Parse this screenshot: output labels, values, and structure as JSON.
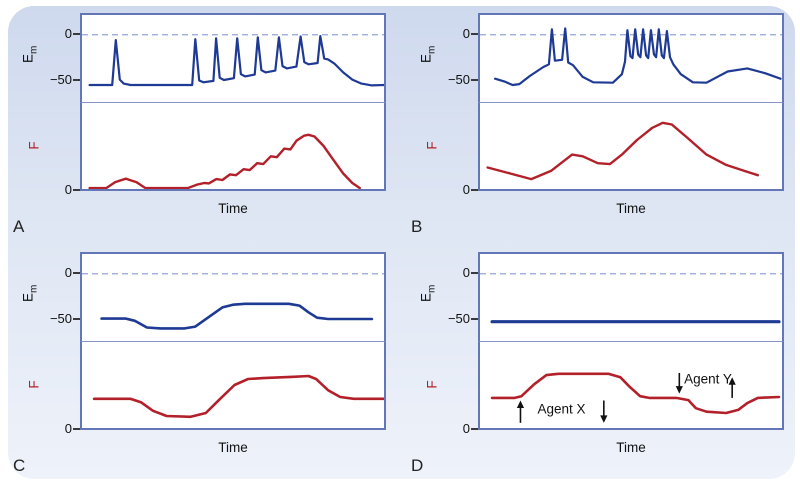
{
  "chart_data": {
    "type": "line",
    "description": "Four-panel physiology figure: membrane potential (Em, mV) and force (F) versus time",
    "colors": {
      "em_trace": "#1e3a94",
      "f_trace": "#b3202a",
      "zero_dashed": "#94a5d8",
      "plot_border": "#6377b8",
      "annotation": "#111111"
    },
    "panels": [
      {
        "label": "A",
        "xlabel": "Time",
        "xlim": [
          0,
          100
        ],
        "em": {
          "label_main": "E",
          "label_sub": "m",
          "ticks": [
            "0",
            "−50"
          ],
          "ylim": [
            -75,
            22
          ],
          "zero_dashed": true,
          "line_width": 2.2,
          "series": [
            [
              2.5,
              -56
            ],
            [
              10,
              -56
            ],
            [
              11.2,
              -6
            ],
            [
              12.5,
              -50
            ],
            [
              13.8,
              -54.5
            ],
            [
              16,
              -56
            ],
            [
              36.5,
              -56
            ],
            [
              37.5,
              -5
            ],
            [
              38.8,
              -51
            ],
            [
              40.2,
              -53
            ],
            [
              43.5,
              -51.5
            ],
            [
              44.4,
              -4
            ],
            [
              45.6,
              -48
            ],
            [
              47,
              -50.5
            ],
            [
              50.3,
              -48.5
            ],
            [
              51.4,
              -4
            ],
            [
              52.6,
              -44
            ],
            [
              54,
              -46.5
            ],
            [
              57.2,
              -44.5
            ],
            [
              58.2,
              -3
            ],
            [
              59.4,
              -39.5
            ],
            [
              60.8,
              -42
            ],
            [
              64,
              -40
            ],
            [
              65.2,
              -3
            ],
            [
              66.4,
              -35
            ],
            [
              67.8,
              -37.5
            ],
            [
              71,
              -35.5
            ],
            [
              72.4,
              -2
            ],
            [
              73.6,
              -30.5
            ],
            [
              75,
              -33
            ],
            [
              78,
              -31.5
            ],
            [
              78.9,
              -1.5
            ],
            [
              80.2,
              -26.5
            ],
            [
              81.5,
              -27.5
            ],
            [
              83.5,
              -32
            ],
            [
              86.5,
              -42
            ],
            [
              89.5,
              -50
            ],
            [
              92.5,
              -54.5
            ],
            [
              96,
              -56.5
            ],
            [
              100,
              -56
            ]
          ]
        },
        "f": {
          "label": "F",
          "tick": "0",
          "ylim": [
            0,
            100
          ],
          "line_width": 2.4,
          "series": [
            [
              2.5,
              1
            ],
            [
              8,
              1
            ],
            [
              11,
              8
            ],
            [
              14.5,
              12
            ],
            [
              18,
              8
            ],
            [
              21,
              1
            ],
            [
              35,
              1
            ],
            [
              38,
              5
            ],
            [
              40.5,
              7
            ],
            [
              42,
              6.5
            ],
            [
              44.5,
              11.5
            ],
            [
              46.5,
              10.5
            ],
            [
              49,
              17
            ],
            [
              51,
              16
            ],
            [
              53.5,
              23
            ],
            [
              55.5,
              22
            ],
            [
              58,
              30
            ],
            [
              60,
              29
            ],
            [
              62.5,
              38
            ],
            [
              64.5,
              37
            ],
            [
              67,
              47
            ],
            [
              69,
              46
            ],
            [
              71,
              56
            ],
            [
              73.5,
              62
            ],
            [
              75,
              63
            ],
            [
              77,
              61
            ],
            [
              80,
              50
            ],
            [
              83,
              35
            ],
            [
              86.5,
              18
            ],
            [
              89.5,
              7
            ],
            [
              92,
              1
            ]
          ]
        },
        "annotations": []
      },
      {
        "label": "B",
        "xlabel": "Time",
        "xlim": [
          0,
          100
        ],
        "em": {
          "label_main": "E",
          "label_sub": "m",
          "ticks": [
            "0",
            "−50"
          ],
          "ylim": [
            -75,
            22
          ],
          "zero_dashed": true,
          "line_width": 2.2,
          "series": [
            [
              5,
              -49
            ],
            [
              8,
              -52
            ],
            [
              10.8,
              -56
            ],
            [
              13,
              -55
            ],
            [
              16.5,
              -46
            ],
            [
              21,
              -36
            ],
            [
              22.8,
              -33
            ],
            [
              23.8,
              6
            ],
            [
              24.8,
              -29
            ],
            [
              27.2,
              -28
            ],
            [
              28.2,
              7
            ],
            [
              29.2,
              -31
            ],
            [
              30.8,
              -34
            ],
            [
              34,
              -47
            ],
            [
              37.5,
              -53
            ],
            [
              44,
              -53.5
            ],
            [
              47,
              -44
            ],
            [
              48,
              -30
            ],
            [
              48.8,
              5
            ],
            [
              49.8,
              -24
            ],
            [
              50.5,
              -26
            ],
            [
              51.4,
              6
            ],
            [
              52.4,
              -22
            ],
            [
              53.1,
              -25
            ],
            [
              54,
              6
            ],
            [
              55,
              -23
            ],
            [
              55.7,
              -26
            ],
            [
              56.6,
              5
            ],
            [
              57.6,
              -22
            ],
            [
              58.3,
              -25
            ],
            [
              59.2,
              6
            ],
            [
              60.2,
              -23
            ],
            [
              60.9,
              -26
            ],
            [
              61.9,
              4
            ],
            [
              62.9,
              -25
            ],
            [
              64,
              -33
            ],
            [
              66.5,
              -44
            ],
            [
              70.5,
              -53
            ],
            [
              75,
              -53.5
            ],
            [
              82,
              -41
            ],
            [
              88.5,
              -37.5
            ],
            [
              94.5,
              -43
            ],
            [
              99.5,
              -49
            ]
          ]
        },
        "f": {
          "label": "F",
          "tick": "0",
          "ylim": [
            0,
            100
          ],
          "line_width": 2.4,
          "series": [
            [
              2.5,
              25
            ],
            [
              10,
              18
            ],
            [
              17,
              11.5
            ],
            [
              23.5,
              21
            ],
            [
              30.5,
              40
            ],
            [
              34,
              38
            ],
            [
              39,
              30
            ],
            [
              43,
              29
            ],
            [
              47,
              40
            ],
            [
              52,
              57
            ],
            [
              57,
              71
            ],
            [
              60.5,
              77
            ],
            [
              63.5,
              75
            ],
            [
              68.5,
              60
            ],
            [
              75,
              40
            ],
            [
              81.5,
              28
            ],
            [
              87.5,
              21
            ],
            [
              92,
              16
            ]
          ]
        },
        "annotations": []
      },
      {
        "label": "C",
        "xlabel": "Time",
        "xlim": [
          0,
          100
        ],
        "em": {
          "label_main": "E",
          "label_sub": "m",
          "ticks": [
            "0",
            "−50"
          ],
          "ylim": [
            -75,
            22
          ],
          "zero_dashed": true,
          "line_width": 2.6,
          "series": [
            [
              6.5,
              -50
            ],
            [
              14.5,
              -50
            ],
            [
              17.5,
              -52.5
            ],
            [
              21.5,
              -60
            ],
            [
              26,
              -61
            ],
            [
              34,
              -61
            ],
            [
              37.5,
              -59
            ],
            [
              42.5,
              -47
            ],
            [
              46.5,
              -37.5
            ],
            [
              50,
              -34.5
            ],
            [
              54,
              -33.5
            ],
            [
              68.5,
              -33.5
            ],
            [
              72,
              -35.5
            ],
            [
              75,
              -43
            ],
            [
              77.8,
              -49
            ],
            [
              81.5,
              -50.5
            ],
            [
              96,
              -50.5
            ]
          ]
        },
        "f": {
          "label": "F",
          "tick": "0",
          "ylim": [
            0,
            100
          ],
          "line_width": 2.6,
          "series": [
            [
              4,
              34
            ],
            [
              16,
              34
            ],
            [
              19.5,
              30
            ],
            [
              23.5,
              20
            ],
            [
              28,
              14
            ],
            [
              36,
              13
            ],
            [
              41,
              17.5
            ],
            [
              45.5,
              33
            ],
            [
              50.5,
              50
            ],
            [
              55,
              57
            ],
            [
              60,
              58
            ],
            [
              70,
              59.5
            ],
            [
              75,
              60.5
            ],
            [
              77.5,
              57
            ],
            [
              81.5,
              44
            ],
            [
              85.5,
              36
            ],
            [
              90,
              34
            ],
            [
              100,
              34
            ]
          ]
        },
        "annotations": []
      },
      {
        "label": "D",
        "xlabel": "Time",
        "xlim": [
          0,
          100
        ],
        "em": {
          "label_main": "E",
          "label_sub": "m",
          "ticks": [
            "0",
            "−50"
          ],
          "ylim": [
            -75,
            22
          ],
          "zero_dashed": true,
          "line_width": 3.2,
          "series": [
            [
              4,
              -53.5
            ],
            [
              99,
              -53.5
            ]
          ]
        },
        "f": {
          "label": "F",
          "tick": "0",
          "ylim": [
            0,
            100
          ],
          "line_width": 2.6,
          "series": [
            [
              4,
              35
            ],
            [
              11.5,
              35
            ],
            [
              13.7,
              37
            ],
            [
              18,
              51
            ],
            [
              22,
              61.5
            ],
            [
              26,
              63
            ],
            [
              42.5,
              63
            ],
            [
              46.5,
              59
            ],
            [
              49.5,
              48
            ],
            [
              53,
              37
            ],
            [
              56,
              35
            ],
            [
              65,
              35
            ],
            [
              69,
              32.5
            ],
            [
              71.5,
              23
            ],
            [
              75,
              19
            ],
            [
              81.5,
              17.5
            ],
            [
              85.5,
              21
            ],
            [
              88.5,
              29
            ],
            [
              92,
              35
            ],
            [
              99,
              36
            ]
          ]
        },
        "annotations": [
          {
            "type": "arrow",
            "t": 13.4,
            "u_from": 6,
            "u_to": 32
          },
          {
            "type": "text",
            "t": 27,
            "u": 22,
            "value": "Agent X"
          },
          {
            "type": "arrow",
            "t": 41,
            "u_from": 32,
            "u_to": 6
          },
          {
            "type": "arrow",
            "t": 66,
            "u_from": 64,
            "u_to": 40
          },
          {
            "type": "text",
            "t": 75.5,
            "u": 57,
            "value": "Agent Y"
          },
          {
            "type": "arrow",
            "t": 83.5,
            "u_from": 35,
            "u_to": 59
          }
        ]
      }
    ]
  }
}
